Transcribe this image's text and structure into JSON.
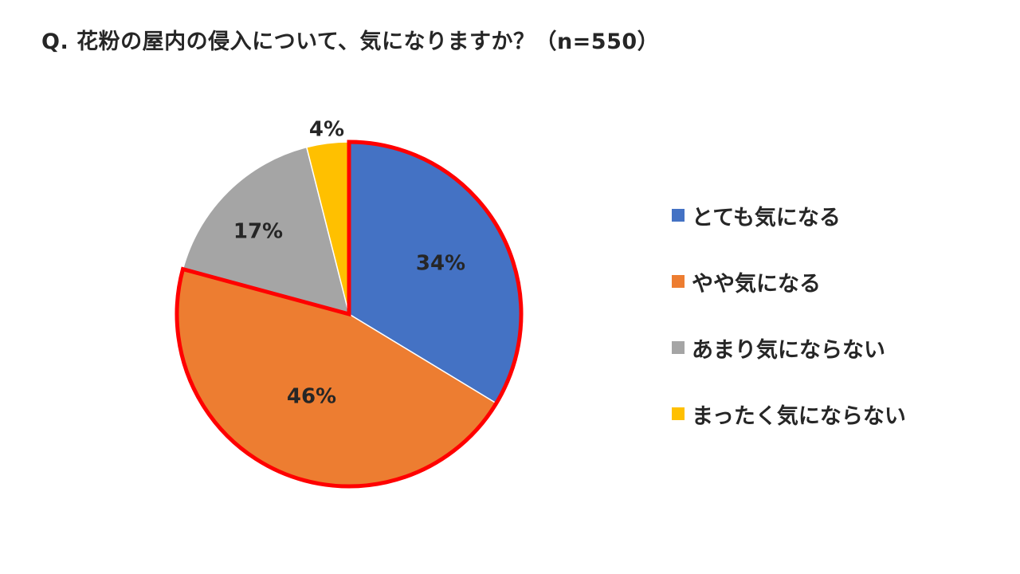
{
  "chart_data": {
    "type": "pie",
    "title": "Q. 花粉の屋内の侵入について、気になりますか？（n=550）",
    "categories": [
      "とても気になる",
      "やや気になる",
      "あまり気にならない",
      "まったく気にならない"
    ],
    "values": [
      34,
      46,
      17,
      4
    ],
    "data_labels": [
      "34%",
      "46%",
      "17%",
      "4%"
    ],
    "colors": [
      "#4472C4",
      "#ED7D31",
      "#A5A5A5",
      "#FFC000"
    ],
    "highlight_outline_color": "#FF0000",
    "highlighted_categories": [
      "とても気になる",
      "やや気になる"
    ],
    "legend_position": "right"
  }
}
